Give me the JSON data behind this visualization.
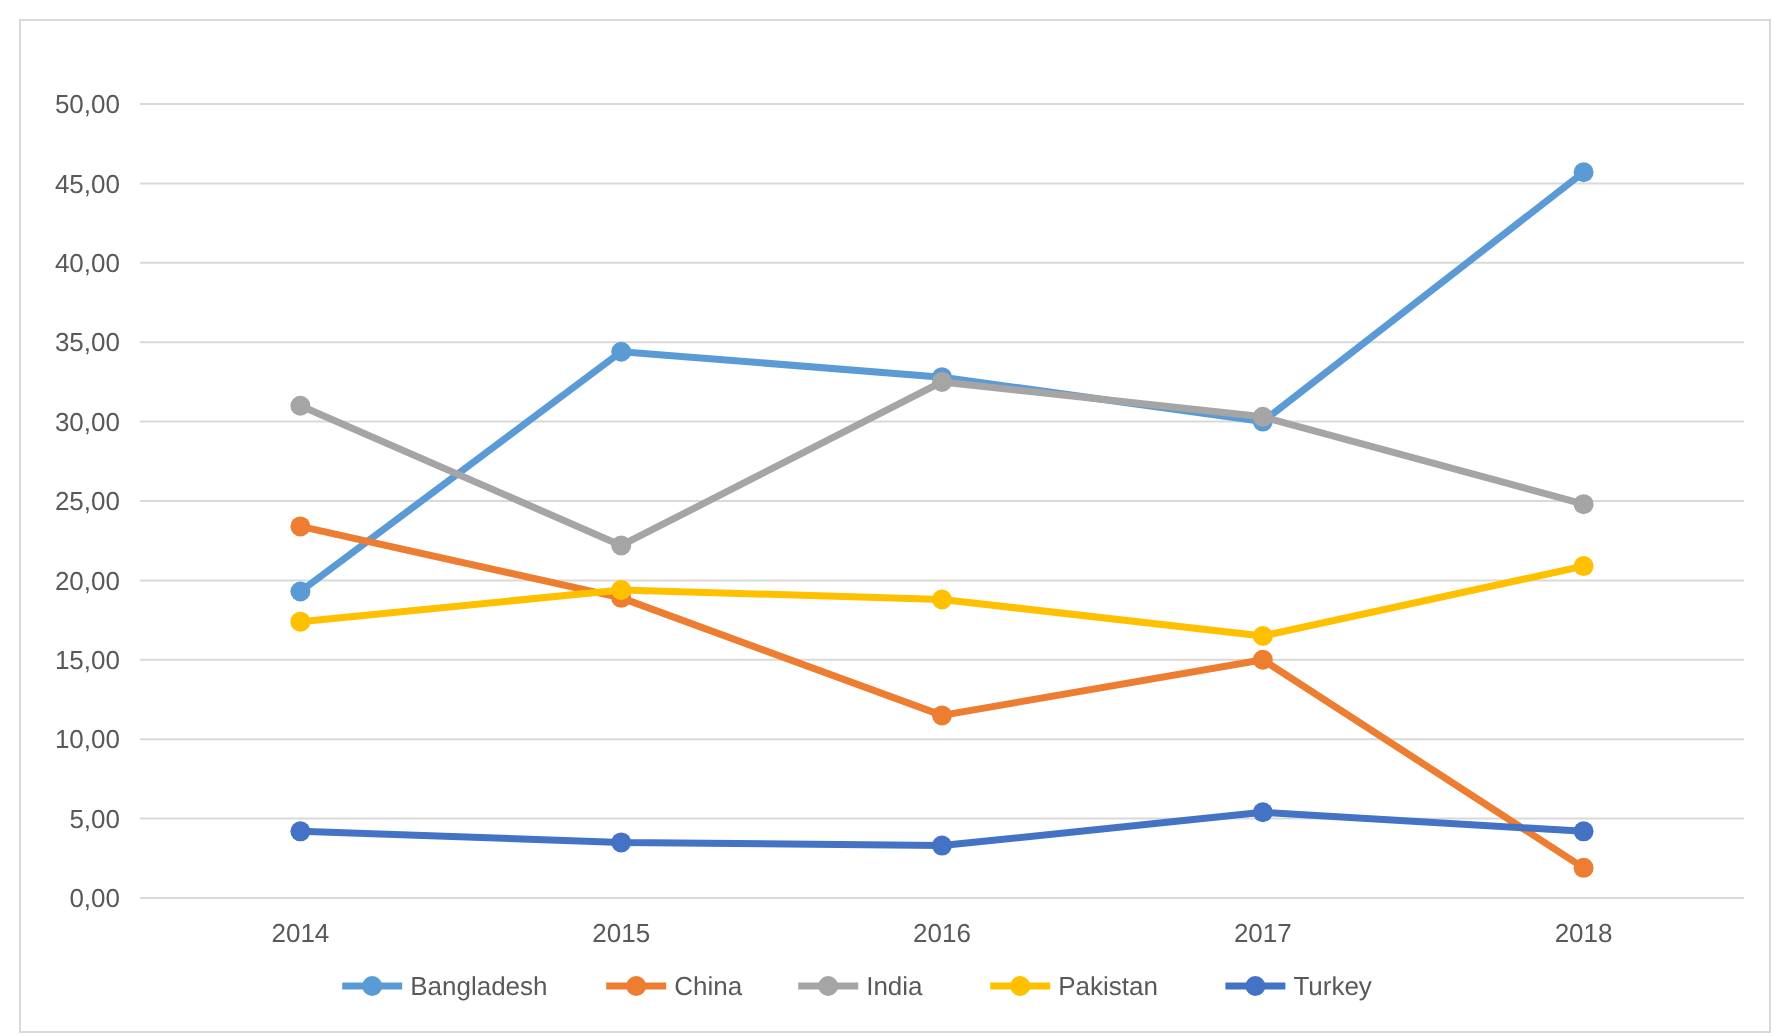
{
  "chart_data": {
    "type": "line",
    "categories": [
      "2014",
      "2015",
      "2016",
      "2017",
      "2018"
    ],
    "series": [
      {
        "name": "Bangladesh",
        "color": "#5b9bd5",
        "values": [
          19.3,
          34.4,
          32.8,
          30.0,
          45.7
        ]
      },
      {
        "name": "China",
        "color": "#ed7d31",
        "values": [
          23.4,
          18.9,
          11.5,
          15.0,
          1.9
        ]
      },
      {
        "name": "India",
        "color": "#a5a5a5",
        "values": [
          31.0,
          22.2,
          32.5,
          30.3,
          24.8
        ]
      },
      {
        "name": "Pakistan",
        "color": "#ffc000",
        "values": [
          17.4,
          19.4,
          18.8,
          16.5,
          20.9
        ]
      },
      {
        "name": "Turkey",
        "color": "#4472c4",
        "values": [
          4.2,
          3.5,
          3.3,
          5.4,
          4.2
        ]
      }
    ],
    "ylim": [
      0,
      50
    ],
    "yticks": [
      {
        "value": 0,
        "label": "0,00"
      },
      {
        "value": 5,
        "label": "5,00"
      },
      {
        "value": 10,
        "label": "10,00"
      },
      {
        "value": 15,
        "label": "15,00"
      },
      {
        "value": 20,
        "label": "20,00"
      },
      {
        "value": 25,
        "label": "25,00"
      },
      {
        "value": 30,
        "label": "30,00"
      },
      {
        "value": 35,
        "label": "35,00"
      },
      {
        "value": 40,
        "label": "40,00"
      },
      {
        "value": 45,
        "label": "45,00"
      },
      {
        "value": 50,
        "label": "50,00"
      }
    ],
    "grid": "y",
    "legend": "bottom",
    "marker": "circle",
    "line_style": "solid"
  }
}
